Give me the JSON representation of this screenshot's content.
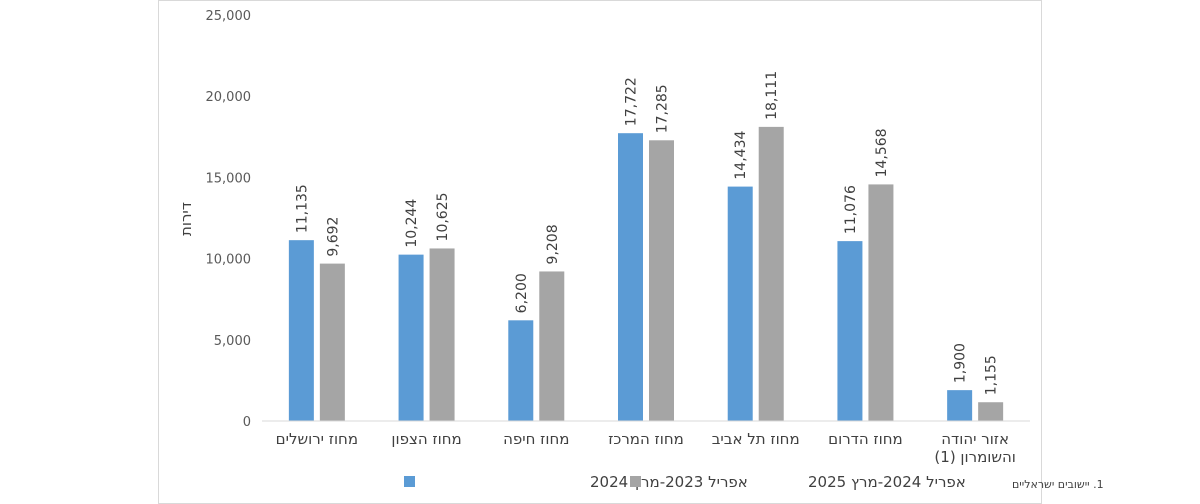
{
  "chart_data": {
    "type": "bar",
    "ylabel": "דירות",
    "ylim": [
      0,
      25000
    ],
    "yticks": [
      "0",
      "5,000",
      "10,000",
      "15,000",
      "20,000",
      "25,000"
    ],
    "categories": [
      [
        "מחוז ירושלים"
      ],
      [
        "מחוז הצפון"
      ],
      [
        "מחוז חיפה"
      ],
      [
        "מחוז המרכז"
      ],
      [
        "מחוז תל אביב"
      ],
      [
        "מחוז הדרום"
      ],
      [
        "אזור יהודה",
        "והשומרון (1)"
      ]
    ],
    "series": [
      {
        "name": "אפריל 2023-מרץ 2024",
        "color": "#5b9bd5",
        "values": [
          11135,
          10244,
          6200,
          17722,
          14434,
          11076,
          1900
        ],
        "labels": [
          "11,135",
          "10,244",
          "6,200",
          "17,722",
          "14,434",
          "11,076",
          "1,900"
        ]
      },
      {
        "name": "אפריל 2024-מרץ 2025",
        "color": "#a5a5a5",
        "values": [
          9692,
          10625,
          9208,
          17285,
          18111,
          14568,
          1155
        ],
        "labels": [
          "9,692",
          "10,625",
          "9,208",
          "17,285",
          "18,111",
          "14,568",
          "1,155"
        ]
      }
    ],
    "legend": "bottom",
    "grid": false
  },
  "footnote": "1. יישובים ישראליים"
}
